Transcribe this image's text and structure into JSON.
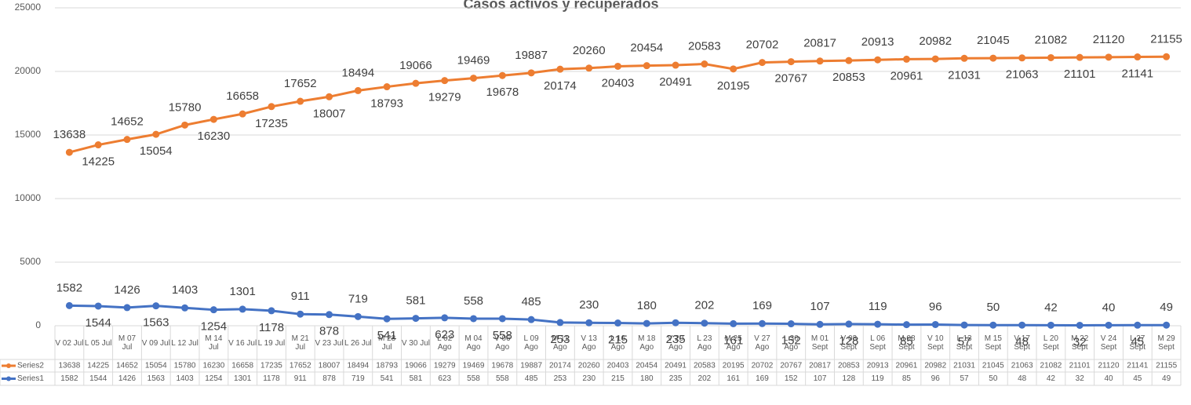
{
  "chart_data": {
    "type": "line",
    "title": "Casos activos y recuperados",
    "categories": [
      "V 02 Jul",
      "L 05 Jul",
      "M 07 Jul",
      "V 09 Jul",
      "L 12 Jul",
      "M 14 Jul",
      "V 16 Jul",
      "L 19 Jul",
      "M 21 Jul",
      "V 23 Jul",
      "L 26 Jul",
      "M 28 Jul",
      "V 30 Jul",
      "L 02 Ago",
      "M 04 Ago",
      "V 06 Ago",
      "L 09 Ago",
      "M 11 Ago",
      "V 13 Ago",
      "L 16 Ago",
      "M 18 Ago",
      "V 20 Ago",
      "L 23 Ago",
      "M 25 Ago",
      "V 27 Ago",
      "L 30 Ago",
      "M 01 Sept",
      "V 03 Sept",
      "L 06 Sept",
      "M 08 Sept",
      "V 10 Sept",
      "L 13 Sept",
      "M 15 Sept",
      "V 17 Sept",
      "L 20 Sept",
      "M 22 Sept",
      "V 24 Sept",
      "L 27 Sept",
      "M 29 Sept"
    ],
    "series": [
      {
        "name": "Series2",
        "color": "#ed7d31",
        "values": [
          13638,
          14225,
          14652,
          15054,
          15780,
          16230,
          16658,
          17235,
          17652,
          18007,
          18494,
          18793,
          19066,
          19279,
          19469,
          19678,
          19887,
          20174,
          20260,
          20403,
          20454,
          20491,
          20583,
          20195,
          20702,
          20767,
          20817,
          20853,
          20913,
          20961,
          20982,
          21031,
          21045,
          21063,
          21082,
          21101,
          21120,
          21141,
          21155
        ]
      },
      {
        "name": "Series1",
        "color": "#4472c4",
        "values": [
          1582,
          1544,
          1426,
          1563,
          1403,
          1254,
          1301,
          1178,
          911,
          878,
          719,
          541,
          581,
          623,
          558,
          558,
          485,
          253,
          230,
          215,
          180,
          235,
          202,
          161,
          169,
          152,
          107,
          128,
          119,
          85,
          96,
          57,
          50,
          48,
          42,
          32,
          40,
          45,
          49
        ]
      }
    ],
    "ylim": [
      0,
      25000
    ],
    "yticks": [
      0,
      5000,
      10000,
      15000,
      20000,
      25000
    ],
    "grid": true
  }
}
